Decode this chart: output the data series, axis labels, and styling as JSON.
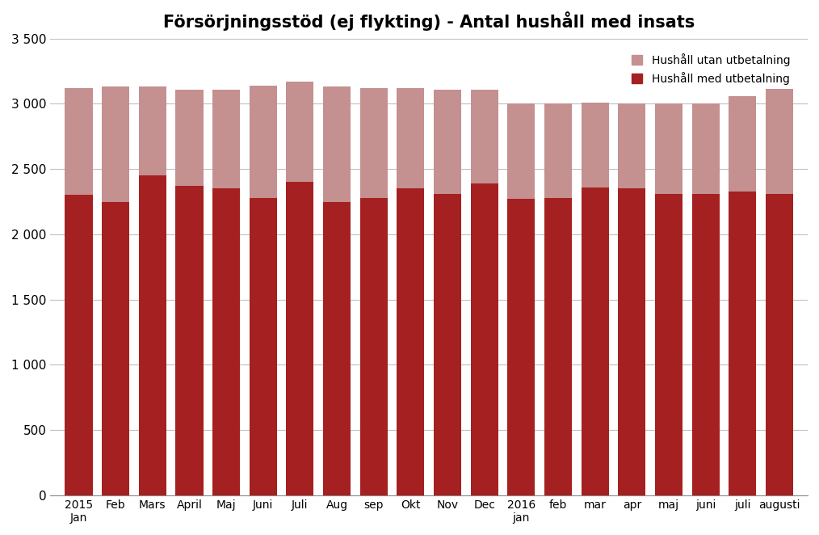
{
  "title": "Försörjningsstöd (ej flykting) - Antal hushåll med insats",
  "categories": [
    "2015\nJan",
    "Feb",
    "Mars",
    "April",
    "Maj",
    "Juni",
    "Juli",
    "Aug",
    "sep",
    "Okt",
    "Nov",
    "Dec",
    "2016\njan",
    "feb",
    "mar",
    "apr",
    "maj",
    "juni",
    "juli",
    "augusti"
  ],
  "med_utbetalning": [
    2300,
    2250,
    2450,
    2370,
    2350,
    2280,
    2400,
    2250,
    2280,
    2350,
    2310,
    2390,
    2270,
    2280,
    2360,
    2350,
    2310,
    2310,
    2330,
    2310
  ],
  "total": [
    3120,
    3130,
    3130,
    3110,
    3110,
    3140,
    3170,
    3130,
    3120,
    3120,
    3110,
    3110,
    3000,
    3000,
    3010,
    3000,
    3000,
    3000,
    3060,
    3130
  ],
  "color_med": "#A52020",
  "color_utan": "#C49090",
  "legend_utan": "Hushåll utan utbetalning",
  "legend_med": "Hushåll med utbetalning",
  "ylim": [
    0,
    3500
  ],
  "yticks": [
    0,
    500,
    1000,
    1500,
    2000,
    2500,
    3000,
    3500
  ],
  "background_color": "#ffffff",
  "grid_color": "#c0c0c0",
  "title_fontsize": 15,
  "bar_width": 0.75
}
